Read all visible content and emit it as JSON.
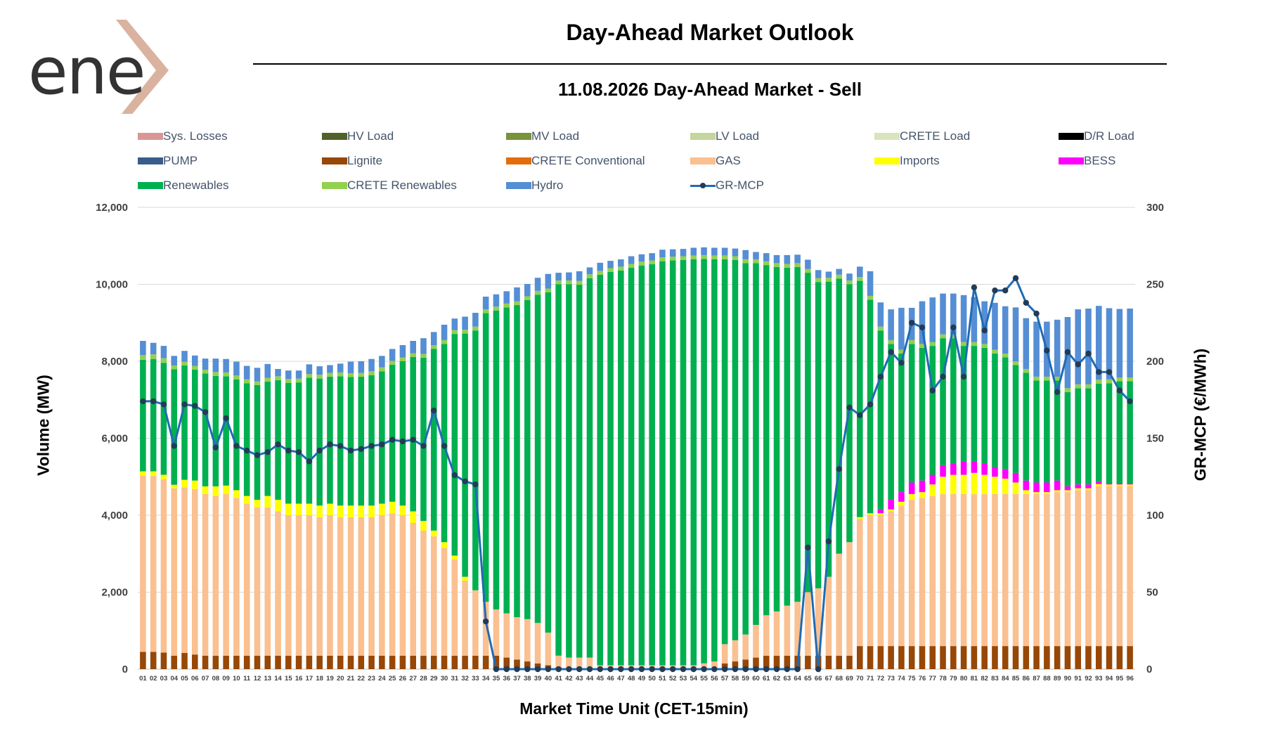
{
  "logo_text": "ene",
  "title": "Day-Ahead Market Outlook",
  "subtitle": "11.08.2026  Day-Ahead Market - Sell",
  "colors": {
    "losses": "#d99694",
    "hv": "#4f6228",
    "mv": "#77933c",
    "lv": "#c3d69b",
    "crete_load": "#d7e4bd",
    "dr": "#000000",
    "pump": "#385d8a",
    "lignite": "#974706",
    "crete_conv": "#e46c0a",
    "gas": "#fac090",
    "imports": "#ffff00",
    "bess": "#ff00ff",
    "renewables": "#00b050",
    "crete_ren": "#92d050",
    "hydro": "#558ed5",
    "mcp": "#1f6bb5"
  },
  "legend": [
    {
      "label": "Sys. Losses",
      "color": "#d99694",
      "type": "bar"
    },
    {
      "label": "HV Load",
      "color": "#4f6228",
      "type": "bar"
    },
    {
      "label": "MV Load",
      "color": "#77933c",
      "type": "bar"
    },
    {
      "label": "LV Load",
      "color": "#c3d69b",
      "type": "bar"
    },
    {
      "label": "CRETE Load",
      "color": "#d7e4bd",
      "type": "bar"
    },
    {
      "label": "D/R Load",
      "color": "#000000",
      "type": "bar"
    },
    {
      "label": "PUMP",
      "color": "#385d8a",
      "type": "bar"
    },
    {
      "label": "Lignite",
      "color": "#974706",
      "type": "bar"
    },
    {
      "label": "CRETE Conventional",
      "color": "#e46c0a",
      "type": "bar"
    },
    {
      "label": "GAS",
      "color": "#fac090",
      "type": "bar"
    },
    {
      "label": "Imports",
      "color": "#ffff00",
      "type": "bar"
    },
    {
      "label": "BESS",
      "color": "#ff00ff",
      "type": "bar"
    },
    {
      "label": "Renewables",
      "color": "#00b050",
      "type": "bar"
    },
    {
      "label": "CRETE Renewables",
      "color": "#92d050",
      "type": "bar"
    },
    {
      "label": "Hydro",
      "color": "#558ed5",
      "type": "bar"
    },
    {
      "label": "GR-MCP",
      "color": "#1f6bb5",
      "type": "line"
    }
  ],
  "chart_data": {
    "type": "bar",
    "stacked": true,
    "xlabel": "Market Time Unit (CET-15min)",
    "ylabel": "Volume (MW)",
    "y2label": "GR-MCP (€/MWh)",
    "ylim": [
      0,
      12000
    ],
    "y2lim": [
      0,
      300
    ],
    "yticks": [
      "0",
      "2,000",
      "4,000",
      "6,000",
      "8,000",
      "10,000",
      "12,000"
    ],
    "y2ticks": [
      "0",
      "50",
      "100",
      "150",
      "200",
      "250",
      "300"
    ],
    "grid": true,
    "legend_position": "top",
    "categories": [
      "01",
      "02",
      "03",
      "04",
      "05",
      "06",
      "07",
      "08",
      "09",
      "10",
      "11",
      "12",
      "13",
      "14",
      "15",
      "16",
      "17",
      "18",
      "19",
      "20",
      "21",
      "22",
      "23",
      "24",
      "25",
      "26",
      "27",
      "28",
      "29",
      "30",
      "31",
      "32",
      "33",
      "34",
      "35",
      "36",
      "37",
      "38",
      "39",
      "40",
      "41",
      "42",
      "43",
      "44",
      "45",
      "46",
      "47",
      "48",
      "49",
      "50",
      "51",
      "52",
      "53",
      "54",
      "55",
      "56",
      "57",
      "58",
      "59",
      "60",
      "61",
      "62",
      "63",
      "64",
      "65",
      "66",
      "67",
      "68",
      "69",
      "70",
      "71",
      "72",
      "73",
      "74",
      "75",
      "76",
      "77",
      "78",
      "79",
      "80",
      "81",
      "82",
      "83",
      "84",
      "85",
      "86",
      "87",
      "88",
      "89",
      "90",
      "91",
      "92",
      "93",
      "94",
      "95",
      "96"
    ],
    "total_mw": [
      8530,
      8480,
      8400,
      8140,
      8270,
      8150,
      8070,
      8070,
      8060,
      7990,
      7880,
      7830,
      7930,
      7800,
      7760,
      7760,
      7920,
      7870,
      7900,
      7940,
      7990,
      8000,
      8060,
      8140,
      8320,
      8420,
      8530,
      8600,
      8760,
      8950,
      9110,
      9160,
      9260,
      9680,
      9740,
      9820,
      9920,
      10010,
      10170,
      10270,
      10300,
      10310,
      10340,
      10440,
      10560,
      10610,
      10650,
      10730,
      10780,
      10810,
      10900,
      10910,
      10920,
      10950,
      10960,
      10950,
      10950,
      10930,
      10890,
      10840,
      10810,
      10760,
      10760,
      10770,
      10640,
      10370,
      10330,
      10400,
      10280,
      10460,
      10340,
      9930,
      9700,
      9690,
      9690,
      9560,
      9660,
      9660,
      9660,
      9720,
      9670,
      9560,
      9520,
      9430,
      9400,
      9120,
      9080,
      9080,
      9080,
      9100,
      8750,
      8770,
      8840,
      8780,
      8760,
      8770
    ],
    "series": [
      {
        "name": "Lignite",
        "values": [
          450,
          450,
          430,
          350,
          420,
          380,
          350,
          350,
          350,
          350,
          350,
          350,
          350,
          350,
          350,
          350,
          350,
          350,
          350,
          350,
          350,
          350,
          350,
          350,
          350,
          350,
          350,
          350,
          350,
          350,
          350,
          350,
          350,
          350,
          350,
          300,
          250,
          200,
          150,
          100,
          50,
          0,
          0,
          0,
          0,
          0,
          0,
          0,
          0,
          0,
          0,
          0,
          0,
          0,
          0,
          0,
          150,
          200,
          250,
          300,
          350,
          350,
          350,
          350,
          350,
          350,
          350,
          350,
          350,
          600,
          600,
          600,
          600,
          600,
          600,
          600,
          600,
          600,
          600,
          600,
          600,
          600,
          600,
          600,
          600,
          600,
          600,
          600,
          600,
          600,
          600,
          600,
          600,
          600,
          600,
          600
        ]
      },
      {
        "name": "GAS",
        "values": [
          4580,
          4570,
          4500,
          4350,
          4300,
          4300,
          4200,
          4150,
          4200,
          4100,
          3950,
          3850,
          3850,
          3750,
          3650,
          3650,
          3650,
          3600,
          3650,
          3600,
          3600,
          3600,
          3600,
          3650,
          3700,
          3650,
          3450,
          3250,
          3100,
          2800,
          2500,
          1950,
          1700,
          1400,
          1200,
          1150,
          1100,
          1100,
          1050,
          850,
          300,
          300,
          300,
          300,
          100,
          100,
          100,
          100,
          100,
          100,
          100,
          100,
          100,
          100,
          150,
          200,
          500,
          550,
          650,
          850,
          1050,
          1150,
          1300,
          1400,
          1650,
          1750,
          2050,
          2650,
          2950,
          3300,
          3400,
          3400,
          3500,
          3650,
          3800,
          3850,
          3900,
          3950,
          3950,
          3950,
          3950,
          3950,
          3950,
          3950,
          3950,
          3950,
          3950,
          3950,
          4000,
          4000,
          4050,
          4050,
          4150,
          4150,
          4150,
          4150
        ]
      },
      {
        "name": "Imports",
        "values": [
          110,
          120,
          120,
          90,
          200,
          220,
          200,
          250,
          220,
          200,
          200,
          200,
          300,
          300,
          300,
          300,
          300,
          300,
          300,
          300,
          300,
          300,
          300,
          300,
          300,
          250,
          300,
          250,
          150,
          150,
          100,
          100,
          0,
          0,
          0,
          0,
          0,
          0,
          0,
          0,
          0,
          0,
          0,
          0,
          0,
          0,
          0,
          0,
          0,
          0,
          0,
          0,
          0,
          0,
          0,
          0,
          0,
          0,
          0,
          0,
          0,
          0,
          0,
          0,
          0,
          0,
          0,
          0,
          0,
          50,
          50,
          50,
          50,
          100,
          150,
          150,
          300,
          450,
          500,
          500,
          550,
          500,
          450,
          400,
          300,
          100,
          50,
          50,
          50,
          50,
          50,
          50,
          60,
          50,
          50,
          50
        ]
      },
      {
        "name": "BESS",
        "values": [
          0,
          0,
          0,
          0,
          0,
          0,
          0,
          0,
          0,
          0,
          0,
          0,
          0,
          0,
          0,
          0,
          0,
          0,
          0,
          0,
          0,
          0,
          0,
          0,
          0,
          0,
          0,
          0,
          0,
          0,
          0,
          0,
          0,
          0,
          0,
          0,
          0,
          0,
          0,
          0,
          0,
          0,
          0,
          0,
          0,
          0,
          0,
          0,
          0,
          0,
          0,
          0,
          0,
          0,
          0,
          0,
          0,
          0,
          0,
          0,
          0,
          0,
          0,
          0,
          0,
          0,
          0,
          0,
          0,
          0,
          0,
          100,
          250,
          250,
          300,
          300,
          250,
          300,
          300,
          350,
          300,
          300,
          250,
          250,
          250,
          250,
          250,
          250,
          250,
          100,
          100,
          100,
          60,
          30,
          30,
          30
        ]
      },
      {
        "name": "Renewables",
        "values": [
          2900,
          2920,
          2910,
          3000,
          2970,
          2880,
          2930,
          2870,
          2840,
          2880,
          2930,
          2980,
          2970,
          3110,
          3140,
          3150,
          3270,
          3300,
          3300,
          3360,
          3340,
          3350,
          3390,
          3440,
          3560,
          3750,
          4010,
          4240,
          4720,
          5150,
          5760,
          6320,
          6750,
          7500,
          7770,
          7950,
          8110,
          8290,
          8530,
          8840,
          9650,
          9700,
          9690,
          9860,
          10150,
          10220,
          10260,
          10330,
          10390,
          10420,
          10500,
          10520,
          10530,
          10550,
          10510,
          10450,
          10000,
          9880,
          9650,
          9400,
          9100,
          8950,
          8780,
          8700,
          8300,
          7960,
          7670,
          7150,
          6700,
          6140,
          5550,
          4650,
          4050,
          3600,
          3600,
          3450,
          3350,
          3300,
          3250,
          3000,
          3000,
          3000,
          2950,
          2900,
          2800,
          2800,
          2650,
          2650,
          2600,
          2450,
          2500,
          2500,
          2550,
          2600,
          2650,
          2650
        ]
      },
      {
        "name": "CRETE Renewables",
        "values": [
          120,
          120,
          120,
          100,
          100,
          100,
          100,
          100,
          100,
          100,
          100,
          100,
          100,
          100,
          100,
          100,
          100,
          100,
          100,
          100,
          100,
          100,
          100,
          100,
          100,
          100,
          100,
          100,
          100,
          100,
          100,
          100,
          100,
          100,
          100,
          100,
          100,
          100,
          100,
          100,
          100,
          100,
          100,
          100,
          100,
          100,
          100,
          100,
          100,
          100,
          100,
          100,
          100,
          100,
          100,
          100,
          100,
          100,
          100,
          100,
          100,
          100,
          100,
          100,
          100,
          100,
          100,
          100,
          100,
          100,
          100,
          100,
          100,
          100,
          100,
          100,
          100,
          100,
          100,
          100,
          100,
          100,
          100,
          100,
          100,
          100,
          100,
          100,
          100,
          100,
          100,
          100,
          100,
          100,
          100,
          100
        ]
      },
      {
        "name": "Hydro",
        "values": [
          370,
          300,
          320,
          250,
          280,
          270,
          290,
          350,
          350,
          360,
          350,
          350,
          360,
          190,
          220,
          210,
          250,
          220,
          200,
          230,
          300,
          300,
          320,
          300,
          310,
          320,
          320,
          410,
          340,
          400,
          300,
          340,
          360,
          330,
          320,
          320,
          360,
          320,
          340,
          380,
          200,
          210,
          250,
          180,
          210,
          190,
          190,
          200,
          190,
          190,
          200,
          190,
          190,
          200,
          200,
          200,
          200,
          200,
          240,
          190,
          210,
          210,
          230,
          220,
          240,
          210,
          160,
          150,
          180,
          270,
          640,
          630,
          800,
          1090,
          840,
          1110,
          1160,
          1060,
          1060,
          1220,
          1170,
          1110,
          1220,
          1230,
          1400,
          1320,
          1430,
          1430,
          1480,
          1850,
          1950,
          1970,
          1920,
          1850,
          1780,
          1790
        ]
      }
    ],
    "line": {
      "name": "GR-MCP",
      "axis": "right",
      "values": [
        174,
        174,
        172,
        145,
        172,
        171,
        167,
        144,
        163,
        145,
        142,
        139,
        141,
        146,
        142,
        141,
        135,
        142,
        146,
        145,
        142,
        143,
        145,
        146,
        149,
        148,
        149,
        145,
        168,
        145,
        126,
        122,
        120,
        31,
        0,
        0,
        0,
        0,
        0,
        0,
        0,
        0,
        0,
        0,
        0,
        0,
        0,
        0,
        0,
        0,
        0,
        0,
        0,
        0,
        0,
        0,
        0,
        0,
        0,
        0,
        0,
        0,
        0,
        0,
        79,
        0,
        83,
        130,
        170,
        165,
        172,
        190,
        206,
        199,
        225,
        222,
        181,
        190,
        222,
        190,
        248,
        220,
        246,
        246,
        254,
        238,
        231,
        207,
        180,
        206,
        198,
        205,
        193,
        193,
        181,
        174
      ]
    }
  }
}
